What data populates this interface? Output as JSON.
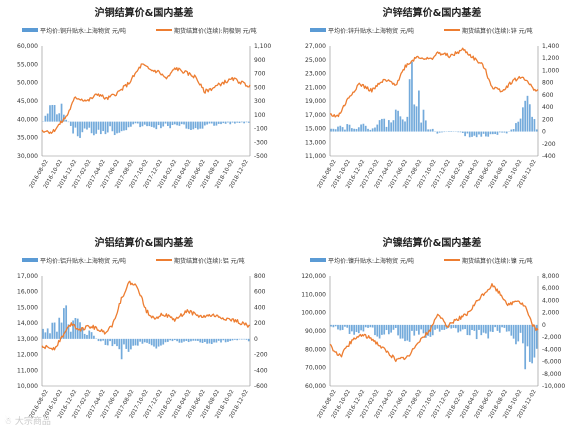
{
  "watermark": "☃ 大宗商品",
  "chart_data": [
    {
      "type": "bar+line",
      "title": "沪铜结算价&国内基差",
      "legend": [
        "平均价:铜升贴水:上海物贸 元/吨",
        "期货结算价(连续):阴极铜 元/吨"
      ],
      "colors": {
        "bar": "#5b9bd5",
        "line": "#ed7d31"
      },
      "x_ticks": [
        "2016-08-02",
        "2016-10-02",
        "2016-12-02",
        "2017-02-02",
        "2017-04-02",
        "2017-06-02",
        "2017-08-02",
        "2017-10-02",
        "2017-12-02",
        "2018-02-02",
        "2018-04-02",
        "2018-06-02",
        "2018-08-02",
        "2018-10-02",
        "2018-12-02"
      ],
      "y_left": {
        "min": 30000,
        "max": 60000,
        "ticks": [
          "60,000",
          "55,000",
          "50,000",
          "45,000",
          "40,000",
          "35,000",
          "30,000"
        ]
      },
      "y_right": {
        "min": -500,
        "max": 1100,
        "ticks": [
          "1,100",
          "900",
          "700",
          "500",
          "300",
          "100",
          "-100",
          "-300",
          "-500"
        ]
      },
      "line_knots": [
        [
          0,
          37000
        ],
        [
          0.05,
          36500
        ],
        [
          0.09,
          39000
        ],
        [
          0.12,
          41000
        ],
        [
          0.16,
          46000
        ],
        [
          0.22,
          45000
        ],
        [
          0.27,
          47000
        ],
        [
          0.31,
          45500
        ],
        [
          0.37,
          47500
        ],
        [
          0.42,
          50000
        ],
        [
          0.48,
          55000
        ],
        [
          0.52,
          53500
        ],
        [
          0.56,
          53000
        ],
        [
          0.6,
          51000
        ],
        [
          0.64,
          54000
        ],
        [
          0.7,
          52500
        ],
        [
          0.74,
          51500
        ],
        [
          0.78,
          47500
        ],
        [
          0.82,
          48500
        ],
        [
          0.87,
          50000
        ],
        [
          0.92,
          51000
        ],
        [
          0.96,
          50000
        ],
        [
          1,
          49000
        ]
      ],
      "bar_knots": [
        [
          0,
          0
        ],
        [
          0.06,
          320
        ],
        [
          0.1,
          120
        ],
        [
          0.16,
          -200
        ],
        [
          0.22,
          -150
        ],
        [
          0.3,
          -120
        ],
        [
          0.36,
          -140
        ],
        [
          0.44,
          -40
        ],
        [
          0.52,
          -90
        ],
        [
          0.6,
          -60
        ],
        [
          0.68,
          -80
        ],
        [
          0.74,
          -100
        ],
        [
          0.8,
          -60
        ],
        [
          0.88,
          -30
        ],
        [
          0.94,
          -20
        ],
        [
          1,
          -20
        ]
      ]
    },
    {
      "type": "bar+line",
      "title": "沪锌结算价&国内基差",
      "legend": [
        "平均价:锌升贴水:上海物贸 元/吨",
        "期货结算价(连续):锌 元/吨"
      ],
      "colors": {
        "bar": "#5b9bd5",
        "line": "#ed7d31"
      },
      "x_ticks": [
        "2016-08-02",
        "2016-10-02",
        "2016-12-02",
        "2017-02-02",
        "2017-04-02",
        "2017-06-02",
        "2017-08-02",
        "2017-10-02",
        "2017-12-02",
        "2018-02-02",
        "2018-04-02",
        "2018-06-02",
        "2018-08-02",
        "2018-10-02",
        "2018-12-02"
      ],
      "y_left": {
        "min": 11000,
        "max": 27000,
        "ticks": [
          "27,000",
          "25,000",
          "23,000",
          "21,000",
          "19,000",
          "17,000",
          "15,000",
          "13,000",
          "11,000"
        ]
      },
      "y_right": {
        "min": -400,
        "max": 1400,
        "ticks": [
          "1,400",
          "1,200",
          "1,000",
          "800",
          "600",
          "400",
          "200",
          "0",
          "-200",
          "-400"
        ]
      },
      "line_knots": [
        [
          0,
          17000
        ],
        [
          0.04,
          16800
        ],
        [
          0.09,
          19500
        ],
        [
          0.14,
          21500
        ],
        [
          0.2,
          20500
        ],
        [
          0.26,
          22000
        ],
        [
          0.32,
          21500
        ],
        [
          0.36,
          24000
        ],
        [
          0.42,
          25500
        ],
        [
          0.48,
          25000
        ],
        [
          0.52,
          26000
        ],
        [
          0.58,
          25500
        ],
        [
          0.64,
          26500
        ],
        [
          0.7,
          25000
        ],
        [
          0.74,
          24000
        ],
        [
          0.78,
          21000
        ],
        [
          0.83,
          20500
        ],
        [
          0.88,
          22000
        ],
        [
          0.93,
          22500
        ],
        [
          0.97,
          21000
        ],
        [
          1,
          20500
        ]
      ],
      "bar_knots": [
        [
          0,
          100
        ],
        [
          0.06,
          80
        ],
        [
          0.12,
          120
        ],
        [
          0.18,
          60
        ],
        [
          0.24,
          150
        ],
        [
          0.3,
          200
        ],
        [
          0.36,
          450
        ],
        [
          0.4,
          850
        ],
        [
          0.46,
          120
        ],
        [
          0.52,
          -40
        ],
        [
          0.58,
          20
        ],
        [
          0.66,
          -60
        ],
        [
          0.74,
          -80
        ],
        [
          0.8,
          -40
        ],
        [
          0.86,
          -20
        ],
        [
          0.92,
          150
        ],
        [
          0.96,
          500
        ],
        [
          1,
          60
        ]
      ]
    },
    {
      "type": "bar+line",
      "title": "沪铝结算价&国内基差",
      "legend": [
        "平均价:铝升贴水:上海物贸 元/吨",
        "期货结算价(连续):铝 元/吨"
      ],
      "colors": {
        "bar": "#5b9bd5",
        "line": "#ed7d31"
      },
      "x_ticks": [
        "2016-08-02",
        "2016-10-02",
        "2016-12-02",
        "2017-02-02",
        "2017-04-02",
        "2017-06-02",
        "2017-08-02",
        "2017-10-02",
        "2017-12-02",
        "2018-02-02",
        "2018-04-02",
        "2018-06-02",
        "2018-08-02",
        "2018-10-02",
        "2018-12-02"
      ],
      "y_left": {
        "min": 10000,
        "max": 17000,
        "ticks": [
          "17,000",
          "16,000",
          "15,000",
          "14,000",
          "13,000",
          "12,000",
          "11,000",
          "10,000"
        ]
      },
      "y_right": {
        "min": -600,
        "max": 800,
        "ticks": [
          "800",
          "600",
          "400",
          "200",
          "0",
          "-200",
          "-400",
          "-600"
        ]
      },
      "line_knots": [
        [
          0,
          12500
        ],
        [
          0.06,
          12400
        ],
        [
          0.1,
          13200
        ],
        [
          0.14,
          14000
        ],
        [
          0.18,
          13600
        ],
        [
          0.24,
          13800
        ],
        [
          0.3,
          13400
        ],
        [
          0.34,
          13900
        ],
        [
          0.38,
          15500
        ],
        [
          0.42,
          16600
        ],
        [
          0.46,
          16300
        ],
        [
          0.5,
          14800
        ],
        [
          0.54,
          14300
        ],
        [
          0.58,
          14600
        ],
        [
          0.64,
          14200
        ],
        [
          0.7,
          14800
        ],
        [
          0.76,
          14400
        ],
        [
          0.82,
          14500
        ],
        [
          0.88,
          14300
        ],
        [
          0.94,
          14100
        ],
        [
          1,
          13800
        ]
      ],
      "bar_knots": [
        [
          0,
          100
        ],
        [
          0.04,
          150
        ],
        [
          0.08,
          300
        ],
        [
          0.12,
          280
        ],
        [
          0.16,
          180
        ],
        [
          0.22,
          100
        ],
        [
          0.28,
          -50
        ],
        [
          0.34,
          -60
        ],
        [
          0.38,
          -200
        ],
        [
          0.44,
          -80
        ],
        [
          0.5,
          -30
        ],
        [
          0.56,
          -90
        ],
        [
          0.62,
          -20
        ],
        [
          0.68,
          -40
        ],
        [
          0.74,
          -20
        ],
        [
          0.8,
          -50
        ],
        [
          0.88,
          -30
        ],
        [
          0.94,
          -20
        ],
        [
          1,
          -20
        ]
      ]
    },
    {
      "type": "bar+line",
      "title": "沪镍结算价&国内基差",
      "legend": [
        "平均价:镍升贴水:上海物贸 元/吨",
        "期货结算价(连续):镍 元/吨"
      ],
      "colors": {
        "bar": "#5b9bd5",
        "line": "#ed7d31"
      },
      "x_ticks": [
        "2016-08-02",
        "2016-10-02",
        "2016-12-02",
        "2017-02-02",
        "2017-04-02",
        "2017-06-02",
        "2017-08-02",
        "2017-10-02",
        "2017-12-02",
        "2018-02-02",
        "2018-04-02",
        "2018-06-02",
        "2018-08-02",
        "2018-10-02",
        "2018-12-02"
      ],
      "y_left": {
        "min": 60000,
        "max": 120000,
        "ticks": [
          "120,000",
          "110,000",
          "100,000",
          "90,000",
          "80,000",
          "70,000",
          "60,000"
        ]
      },
      "y_right": {
        "min": -10000,
        "max": 8000,
        "ticks": [
          "8,000",
          "6,000",
          "4,000",
          "2,000",
          "0",
          "-2,000",
          "-4,000",
          "-6,000",
          "-8,000",
          "-10,000"
        ]
      },
      "line_knots": [
        [
          0,
          82000
        ],
        [
          0.05,
          76000
        ],
        [
          0.1,
          84000
        ],
        [
          0.15,
          88000
        ],
        [
          0.2,
          86000
        ],
        [
          0.26,
          80000
        ],
        [
          0.32,
          74000
        ],
        [
          0.38,
          76000
        ],
        [
          0.42,
          84000
        ],
        [
          0.48,
          90000
        ],
        [
          0.52,
          100000
        ],
        [
          0.56,
          92000
        ],
        [
          0.6,
          96000
        ],
        [
          0.66,
          99000
        ],
        [
          0.72,
          108000
        ],
        [
          0.78,
          115000
        ],
        [
          0.82,
          110000
        ],
        [
          0.86,
          104000
        ],
        [
          0.9,
          107000
        ],
        [
          0.94,
          103000
        ],
        [
          0.97,
          94000
        ],
        [
          1,
          90000
        ]
      ],
      "bar_knots": [
        [
          0,
          -300
        ],
        [
          0.06,
          -800
        ],
        [
          0.12,
          -1200
        ],
        [
          0.18,
          -600
        ],
        [
          0.24,
          -1500
        ],
        [
          0.3,
          -900
        ],
        [
          0.36,
          -2500
        ],
        [
          0.42,
          -1200
        ],
        [
          0.48,
          -2000
        ],
        [
          0.54,
          -800
        ],
        [
          0.6,
          -1000
        ],
        [
          0.68,
          -1600
        ],
        [
          0.74,
          -1800
        ],
        [
          0.8,
          -1000
        ],
        [
          0.86,
          -900
        ],
        [
          0.9,
          -2500
        ],
        [
          0.94,
          -4500
        ],
        [
          0.97,
          -6500
        ],
        [
          1,
          -3000
        ]
      ]
    }
  ]
}
